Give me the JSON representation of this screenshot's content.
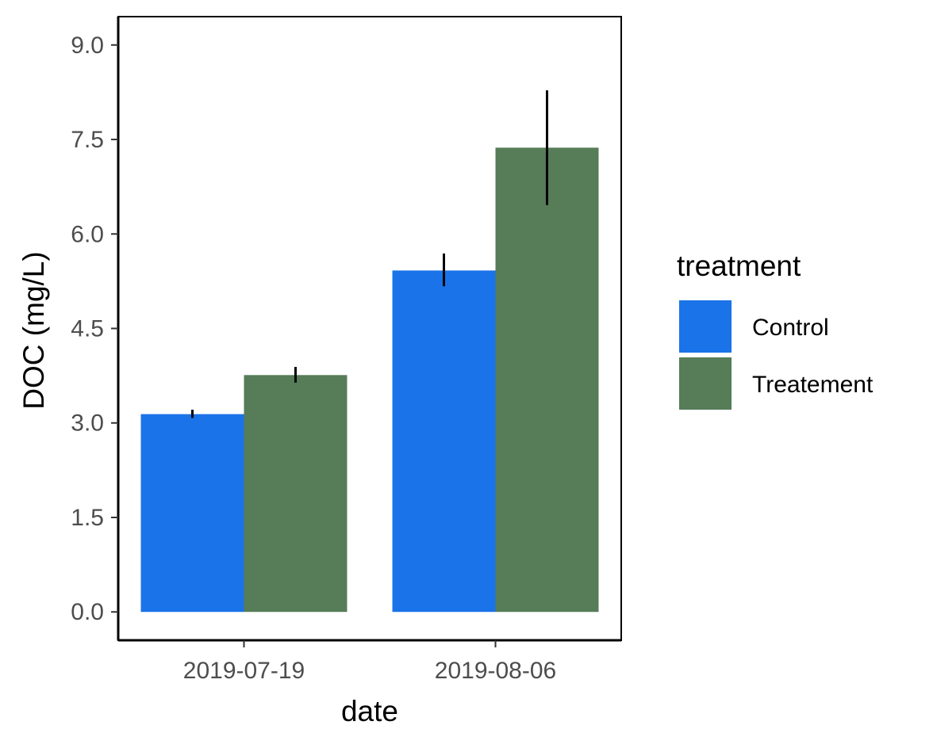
{
  "chart_data": {
    "type": "bar",
    "xlabel": "date",
    "ylabel": "DOC (mg/L)",
    "categories": [
      "2019-07-19",
      "2019-08-06"
    ],
    "ylim": [
      -0.45,
      9.45
    ],
    "yticks": [
      "0.0",
      "1.5",
      "3.0",
      "4.5",
      "6.0",
      "7.5",
      "9.0"
    ],
    "ytick_values": [
      0,
      1.5,
      3,
      4.5,
      6,
      7.5,
      9
    ],
    "grid": false,
    "legend": {
      "title": "treatment",
      "position": "right"
    },
    "series": [
      {
        "name": "Control",
        "color": "#1a73e8",
        "values": [
          3.14,
          5.42
        ],
        "error_low": [
          3.08,
          5.17
        ],
        "error_high": [
          3.21,
          5.69
        ]
      },
      {
        "name": "Treatement",
        "color": "#567c58",
        "values": [
          3.76,
          7.37
        ],
        "error_low": [
          3.64,
          6.46
        ],
        "error_high": [
          3.89,
          8.28
        ]
      }
    ]
  }
}
